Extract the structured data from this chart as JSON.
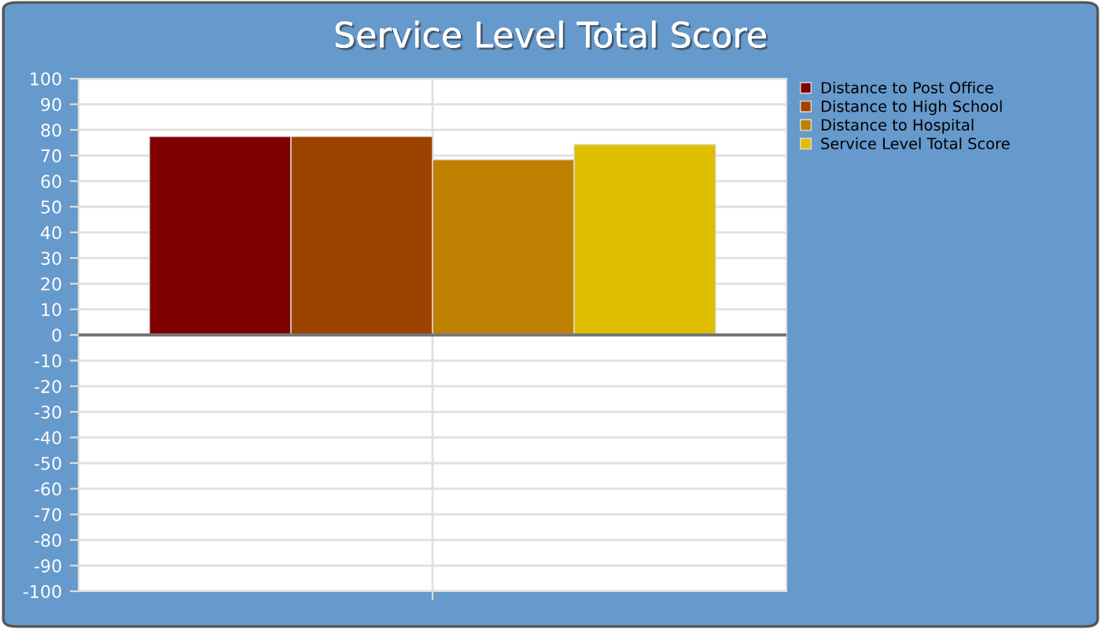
{
  "chart_data": {
    "type": "bar",
    "title": "Service Level Total Score",
    "categories": [
      null
    ],
    "series": [
      {
        "name": "Distance to Post Office",
        "color": "#800000",
        "values": [
          77.4
        ]
      },
      {
        "name": "Distance to High School",
        "color": "#9e4200",
        "values": [
          77.4
        ]
      },
      {
        "name": "Distance to Hospital",
        "color": "#bf7f00",
        "values": [
          68.4
        ]
      },
      {
        "name": "Service Level Total Score",
        "color": "#dfbe00",
        "values": [
          74.3
        ]
      }
    ],
    "ylim": [
      -100,
      100
    ],
    "yticks": [
      -100,
      -90,
      -80,
      -70,
      -60,
      -50,
      -40,
      -30,
      -20,
      -10,
      0,
      10,
      20,
      30,
      40,
      50,
      60,
      70,
      80,
      90,
      100
    ],
    "ref_lines": [
      {
        "axis": "y",
        "value": 0,
        "color": "#777777"
      }
    ],
    "grid": true,
    "legend": "top right"
  }
}
